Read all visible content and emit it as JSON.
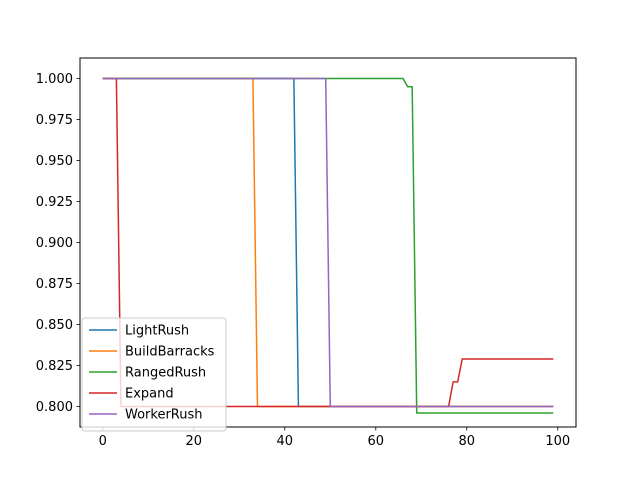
{
  "chart_data": {
    "type": "line",
    "title": "",
    "xlabel": "",
    "ylabel": "",
    "xlim": [
      -5,
      104
    ],
    "ylim": [
      0.7875,
      1.0125
    ],
    "xticks": [
      0,
      20,
      40,
      60,
      80,
      100
    ],
    "yticks": [
      0.8,
      0.825,
      0.85,
      0.875,
      0.9,
      0.925,
      0.95,
      0.975,
      1.0
    ],
    "xtick_labels": [
      "0",
      "20",
      "40",
      "60",
      "80",
      "100"
    ],
    "ytick_labels": [
      "0.800",
      "0.825",
      "0.850",
      "0.875",
      "0.900",
      "0.925",
      "0.950",
      "0.975",
      "1.000"
    ],
    "grid": false,
    "legend_position": "lower-left",
    "series": [
      {
        "name": "LightRush",
        "color": "#1f77b4",
        "points": [
          [
            0,
            1.0
          ],
          [
            42,
            1.0
          ],
          [
            43,
            0.8
          ],
          [
            99,
            0.8
          ]
        ]
      },
      {
        "name": "BuildBarracks",
        "color": "#ff7f0e",
        "points": [
          [
            0,
            1.0
          ],
          [
            33,
            1.0
          ],
          [
            34,
            0.8
          ],
          [
            99,
            0.8
          ]
        ]
      },
      {
        "name": "RangedRush",
        "color": "#2ca02c",
        "points": [
          [
            0,
            1.0
          ],
          [
            66,
            1.0
          ],
          [
            67,
            0.995
          ],
          [
            68,
            0.995
          ],
          [
            69,
            0.796
          ],
          [
            99,
            0.796
          ]
        ]
      },
      {
        "name": "Expand",
        "color": "#d62728",
        "points": [
          [
            0,
            1.0
          ],
          [
            3,
            1.0
          ],
          [
            4,
            0.8
          ],
          [
            76,
            0.8
          ],
          [
            77,
            0.815
          ],
          [
            78,
            0.815
          ],
          [
            79,
            0.829
          ],
          [
            99,
            0.829
          ]
        ]
      },
      {
        "name": "WorkerRush",
        "color": "#9467bd",
        "points": [
          [
            0,
            1.0
          ],
          [
            49,
            1.0
          ],
          [
            50,
            0.8
          ],
          [
            99,
            0.8
          ]
        ]
      }
    ]
  }
}
